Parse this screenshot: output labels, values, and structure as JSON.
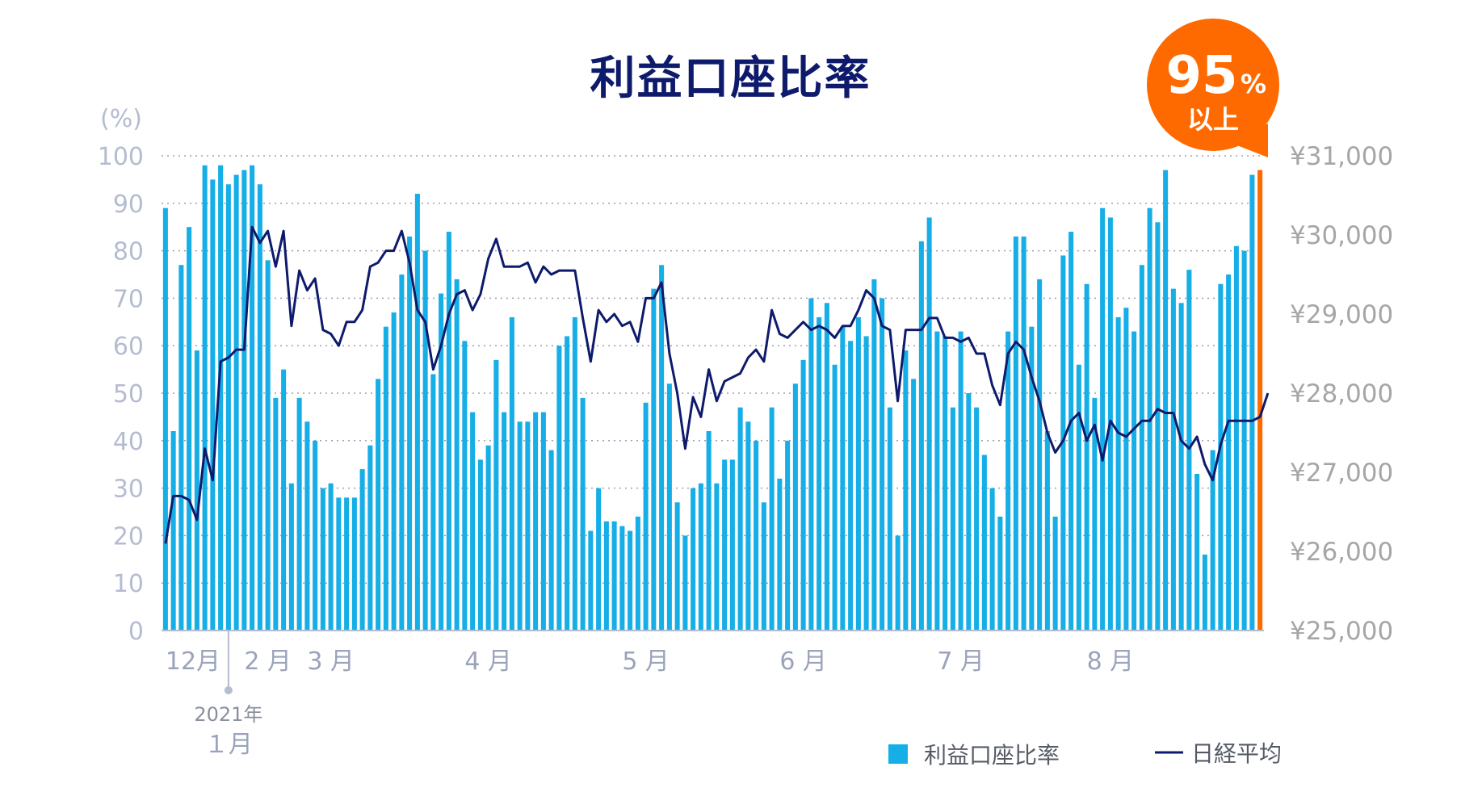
{
  "chart_data": {
    "type": "bar",
    "title": "利益口座比率",
    "y_left_unit_label": "(%)",
    "y_left_ticks": [
      "0",
      "10",
      "20",
      "30",
      "40",
      "50",
      "60",
      "70",
      "80",
      "90",
      "100"
    ],
    "y_left_range": [
      0,
      100
    ],
    "y_right_ticks": [
      "¥25,000",
      "¥26,000",
      "¥27,000",
      "¥28,000",
      "¥29,000",
      "¥30,000",
      "¥31,000"
    ],
    "y_right_range": [
      25000,
      31000
    ],
    "x_month_labels": [
      {
        "label": "12月",
        "index": 0
      },
      {
        "label": "2 月",
        "index": 13
      },
      {
        "label": "3 月",
        "index": 21
      },
      {
        "label": "4 月",
        "index": 41
      },
      {
        "label": "5 月",
        "index": 61
      },
      {
        "label": "6 月",
        "index": 81
      },
      {
        "label": "7 月",
        "index": 101
      },
      {
        "label": "8 月",
        "index": 120
      }
    ],
    "year_marker": {
      "year_label": "2021年",
      "month_label": "１月",
      "index": 8
    },
    "grid": true,
    "legend_position": "bottom-right",
    "series": [
      {
        "name": "利益口座比率",
        "type": "bar",
        "color": "#16aee6",
        "values": [
          89,
          42,
          77,
          85,
          59,
          98,
          95,
          98,
          94,
          96,
          97,
          98,
          94,
          78,
          49,
          55,
          31,
          49,
          44,
          40,
          30,
          31,
          28,
          28,
          28,
          34,
          39,
          53,
          64,
          67,
          75,
          83,
          92,
          80,
          54,
          71,
          84,
          74,
          61,
          46,
          36,
          39,
          57,
          46,
          66,
          44,
          44,
          46,
          46,
          38,
          60,
          62,
          66,
          49,
          21,
          30,
          23,
          23,
          22,
          21,
          24,
          48,
          72,
          77,
          52,
          27,
          20,
          30,
          31,
          42,
          31,
          36,
          36,
          47,
          44,
          40,
          27,
          47,
          32,
          40,
          52,
          57,
          70,
          66,
          69,
          56,
          64,
          61,
          66,
          62,
          74,
          70,
          47,
          20,
          59,
          53,
          82,
          87,
          63,
          62,
          47,
          63,
          50,
          47,
          37,
          30,
          24,
          63,
          83,
          83,
          64,
          74,
          42,
          24,
          79,
          84,
          56,
          73,
          49,
          89,
          87,
          66,
          68,
          63,
          77,
          89,
          86,
          97,
          72,
          69,
          76,
          33,
          16,
          38,
          73,
          75,
          81,
          80,
          96,
          97
        ]
      },
      {
        "name": "日経平均",
        "type": "line",
        "color": "#0e1a6b",
        "values": [
          26100,
          26700,
          26700,
          26650,
          26400,
          27300,
          26900,
          28400,
          28450,
          28550,
          28550,
          30100,
          29900,
          30050,
          29600,
          30050,
          28850,
          29550,
          29300,
          29450,
          28800,
          28750,
          28600,
          28900,
          28900,
          29050,
          29600,
          29650,
          29800,
          29800,
          30050,
          29650,
          29050,
          28900,
          28300,
          28600,
          29000,
          29250,
          29300,
          29050,
          29250,
          29700,
          29950,
          29600,
          29600,
          29600,
          29650,
          29400,
          29600,
          29500,
          29550,
          29550,
          29550,
          28950,
          28400,
          29050,
          28900,
          29000,
          28850,
          28900,
          28650,
          29200,
          29200,
          29400,
          28500,
          28000,
          27300,
          27950,
          27700,
          28300,
          27900,
          28150,
          28200,
          28250,
          28450,
          28550,
          28400,
          29050,
          28750,
          28700,
          28800,
          28900,
          28800,
          28850,
          28800,
          28700,
          28850,
          28850,
          29050,
          29300,
          29200,
          28850,
          28800,
          27900,
          28800,
          28800,
          28800,
          28950,
          28950,
          28700,
          28700,
          28650,
          28700,
          28500,
          28500,
          28100,
          27850,
          28500,
          28650,
          28550,
          28200,
          27900,
          27500,
          27250,
          27400,
          27650,
          27750,
          27400,
          27600,
          27150,
          27650,
          27500,
          27450,
          27550,
          27650,
          27650,
          27800,
          27750,
          27750,
          27400,
          27300,
          27450,
          27100,
          26900,
          27350,
          27650,
          27650,
          27650,
          27650,
          27700,
          28000
        ]
      }
    ],
    "callout": {
      "value": "95",
      "unit": "%",
      "suffix": "以上",
      "color": "#ff6a00",
      "highlight_bar_color": "#ff6a00"
    }
  }
}
